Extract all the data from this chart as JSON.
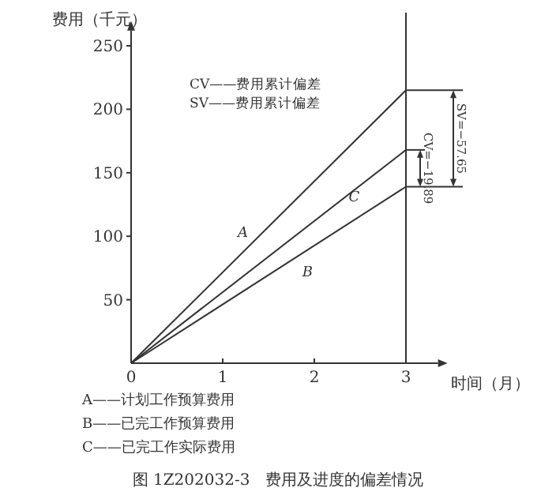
{
  "chart_data": {
    "type": "line",
    "xlabel": "时间（月）",
    "ylabel": "费用（千元）",
    "x": [
      0,
      3
    ],
    "series": [
      {
        "name": "A",
        "color": "#333333",
        "values": [
          0,
          215
        ]
      },
      {
        "name": "B",
        "color": "#333333",
        "values": [
          0,
          139
        ]
      },
      {
        "name": "C",
        "color": "#333333",
        "values": [
          0,
          168
        ]
      }
    ],
    "xlim": [
      0,
      3.35
    ],
    "ylim": [
      0,
      262
    ],
    "xticks": [
      0,
      1,
      2,
      3
    ],
    "yticks": [
      50,
      100,
      150,
      200,
      250
    ],
    "ref_lines": [
      {
        "axis": "x",
        "value": 3,
        "color": "#333333"
      }
    ],
    "grid": false,
    "marker": "none",
    "line_style": "solid",
    "annotations": [
      "CV——费用累计偏差",
      "SV——费用累计偏差",
      "CV=−19.89",
      {
        "text": "SV=−57.65",
        "x": 3,
        "y": 215
      },
      "A——计划工作预算费用",
      "B——已完工作预算费用",
      "C——已完工作实际费用",
      "图 1Z202032-3　费用及进度的偏差情况"
    ]
  }
}
